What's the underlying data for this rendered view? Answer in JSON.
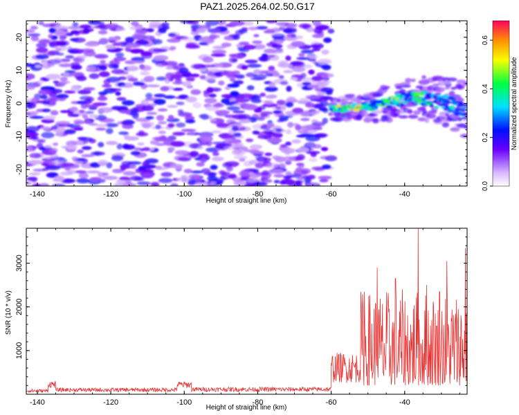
{
  "title": "PAZ1.2025.264.02.50.G17",
  "chart_data": [
    {
      "type": "heatmap",
      "name": "spectrogram",
      "xlabel": "Height of straight line (km)",
      "ylabel": "Frequency (Hz)",
      "xlim": [
        -143,
        -23
      ],
      "ylim": [
        -25,
        25
      ],
      "xticks": [
        -140,
        -120,
        -100,
        -80,
        -60,
        -40
      ],
      "yticks": [
        -20,
        -10,
        0,
        10,
        20
      ],
      "noise_region": {
        "x": [
          -143,
          -60
        ],
        "y": [
          -25,
          25
        ],
        "amplitude": [
          0.05,
          0.22
        ]
      },
      "signal_track": {
        "x": [
          -60,
          -56,
          -52,
          -48,
          -44,
          -40,
          -36,
          -32,
          -28,
          -24,
          -23
        ],
        "freq": [
          -1.5,
          -1.6,
          -1.2,
          -0.6,
          0.3,
          1.3,
          1.8,
          1.0,
          -0.2,
          -2.0,
          -2.3
        ],
        "amplitude": [
          0.35,
          0.6,
          0.55,
          0.35,
          0.55,
          0.35,
          0.45,
          0.4,
          0.35,
          0.3,
          0.3
        ]
      },
      "colorbar": {
        "label": "Normalized spectral amplitude",
        "range": [
          0.0,
          0.68
        ],
        "ticks": [
          0.0,
          0.2,
          0.4,
          0.6
        ],
        "tick_labels": [
          "0.0",
          "0.2",
          "0.4",
          "0.6"
        ]
      }
    },
    {
      "type": "line",
      "name": "snr",
      "xlabel": "Height of straight line (km)",
      "ylabel": "SNR (10 * v/v)",
      "xlim": [
        -143,
        -23
      ],
      "ylim": [
        0,
        3800
      ],
      "xticks": [
        -140,
        -120,
        -100,
        -80,
        -60,
        -40
      ],
      "yticks": [
        1000,
        2000,
        3000
      ],
      "color": "#e83030",
      "series": [
        {
          "name": "SNR",
          "segments": [
            {
              "x": [
                -143,
                -137
              ],
              "level": 80,
              "noise": 60
            },
            {
              "x": [
                -137,
                -135
              ],
              "level": 300,
              "noise": 120
            },
            {
              "x": [
                -135,
                -102
              ],
              "level": 110,
              "noise": 70
            },
            {
              "x": [
                -102,
                -98
              ],
              "level": 280,
              "noise": 120
            },
            {
              "x": [
                -98,
                -60
              ],
              "level": 120,
              "noise": 80
            },
            {
              "x": [
                -60,
                -52
              ],
              "level": 900,
              "noise": 500
            },
            {
              "x": [
                -52,
                -23
              ],
              "level": 1000,
              "noise": 1000
            }
          ],
          "peaks": [
            {
              "x": -36.3,
              "y": 3800
            },
            {
              "x": -23.5,
              "y": 3350
            },
            {
              "x": -28.5,
              "y": 3050
            },
            {
              "x": -47.5,
              "y": 2900
            },
            {
              "x": -51.0,
              "y": 2350
            },
            {
              "x": -42.5,
              "y": 2650
            },
            {
              "x": -34.0,
              "y": 2500
            },
            {
              "x": -30.5,
              "y": 2350
            }
          ]
        }
      ]
    }
  ]
}
